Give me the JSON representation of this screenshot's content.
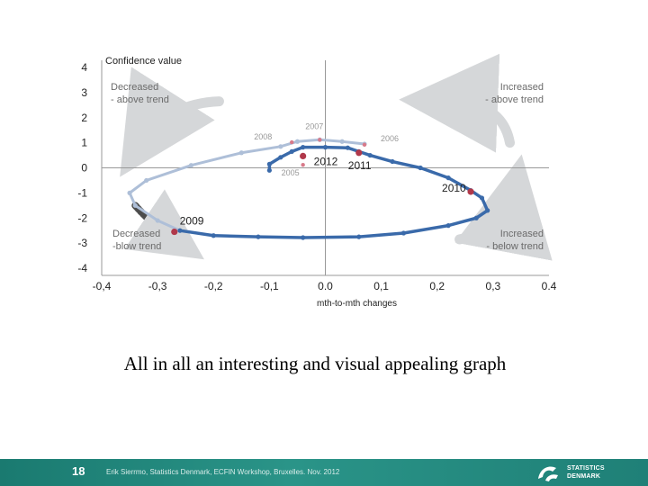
{
  "chart_data": {
    "type": "line",
    "xlabel": "mth-to-mth  changes",
    "ylabel": "Confidence value",
    "xlim": [
      -0.4,
      0.4
    ],
    "ylim": [
      -4,
      4
    ],
    "xticks": [
      "-0,4",
      "-0,3",
      "-0,2",
      "-0,1",
      "0.0",
      "0,1",
      "0,2",
      "0,3",
      "0.4"
    ],
    "yticks": [
      "4",
      "3",
      "2",
      "1",
      "0",
      "-1",
      "-2",
      "-3",
      "-4"
    ],
    "grid": false,
    "quadrant_labels": [
      {
        "text": [
          "Decreased",
          "- above trend"
        ],
        "quadrant": "top-left"
      },
      {
        "text": [
          "Increased",
          "- above trend"
        ],
        "quadrant": "top-right"
      },
      {
        "text": [
          "Decreased",
          "-blow trend"
        ],
        "quadrant": "bottom-left"
      },
      {
        "text": [
          "Increased",
          "- below trend"
        ],
        "quadrant": "bottom-right"
      }
    ],
    "series": [
      {
        "color": "#aebfd8",
        "points": [
          {
            "x": 0.07,
            "y": 0.95
          },
          {
            "x": 0.03,
            "y": 1.05
          },
          {
            "x": -0.01,
            "y": 1.12
          },
          {
            "x": -0.05,
            "y": 1.05
          },
          {
            "x": -0.08,
            "y": 0.85
          },
          {
            "x": -0.15,
            "y": 0.6
          },
          {
            "x": -0.24,
            "y": 0.1
          },
          {
            "x": -0.32,
            "y": -0.5
          },
          {
            "x": -0.35,
            "y": -1.0
          },
          {
            "x": -0.34,
            "y": -1.5
          },
          {
            "x": -0.3,
            "y": -2.1
          },
          {
            "x": -0.26,
            "y": -2.5
          }
        ]
      },
      {
        "color": "#3a6aaa",
        "points": [
          {
            "x": -0.26,
            "y": -2.5
          },
          {
            "x": -0.2,
            "y": -2.7
          },
          {
            "x": -0.12,
            "y": -2.75
          },
          {
            "x": -0.04,
            "y": -2.78
          },
          {
            "x": 0.06,
            "y": -2.75
          },
          {
            "x": 0.14,
            "y": -2.6
          },
          {
            "x": 0.22,
            "y": -2.3
          },
          {
            "x": 0.27,
            "y": -2.0
          },
          {
            "x": 0.29,
            "y": -1.7
          },
          {
            "x": 0.28,
            "y": -1.2
          },
          {
            "x": 0.26,
            "y": -0.9
          },
          {
            "x": 0.22,
            "y": -0.4
          },
          {
            "x": 0.17,
            "y": 0.0
          },
          {
            "x": 0.12,
            "y": 0.25
          },
          {
            "x": 0.08,
            "y": 0.5
          },
          {
            "x": 0.06,
            "y": 0.65
          },
          {
            "x": 0.04,
            "y": 0.8
          },
          {
            "x": 0.0,
            "y": 0.82
          },
          {
            "x": -0.04,
            "y": 0.82
          },
          {
            "x": -0.06,
            "y": 0.65
          },
          {
            "x": -0.08,
            "y": 0.42
          },
          {
            "x": -0.1,
            "y": 0.15
          },
          {
            "x": -0.1,
            "y": -0.1
          }
        ]
      }
    ],
    "year_points": [
      {
        "x": -0.27,
        "y": -2.55,
        "label": "2009"
      },
      {
        "x": 0.26,
        "y": -0.95,
        "label": "2010"
      },
      {
        "x": 0.06,
        "y": 0.6,
        "label": "2011"
      },
      {
        "x": -0.04,
        "y": 0.47,
        "label": "2012"
      },
      {
        "x": -0.06,
        "y": 1.02,
        "label": "2008"
      },
      {
        "x": -0.01,
        "y": 1.12,
        "label": "2007"
      },
      {
        "x": 0.07,
        "y": 0.92,
        "label": "2006"
      },
      {
        "x": -0.04,
        "y": 0.12,
        "label": "2005"
      }
    ]
  },
  "caption": "All in all an interesting and visual appealing graph",
  "footer": {
    "slide_number": "18",
    "text": "Erik Sierrmo, Statistics Denmark, ECFIN Workshop, Bruxelles. Nov. 2012",
    "logo_line1": "STATISTICS",
    "logo_line2": "DENMARK"
  }
}
